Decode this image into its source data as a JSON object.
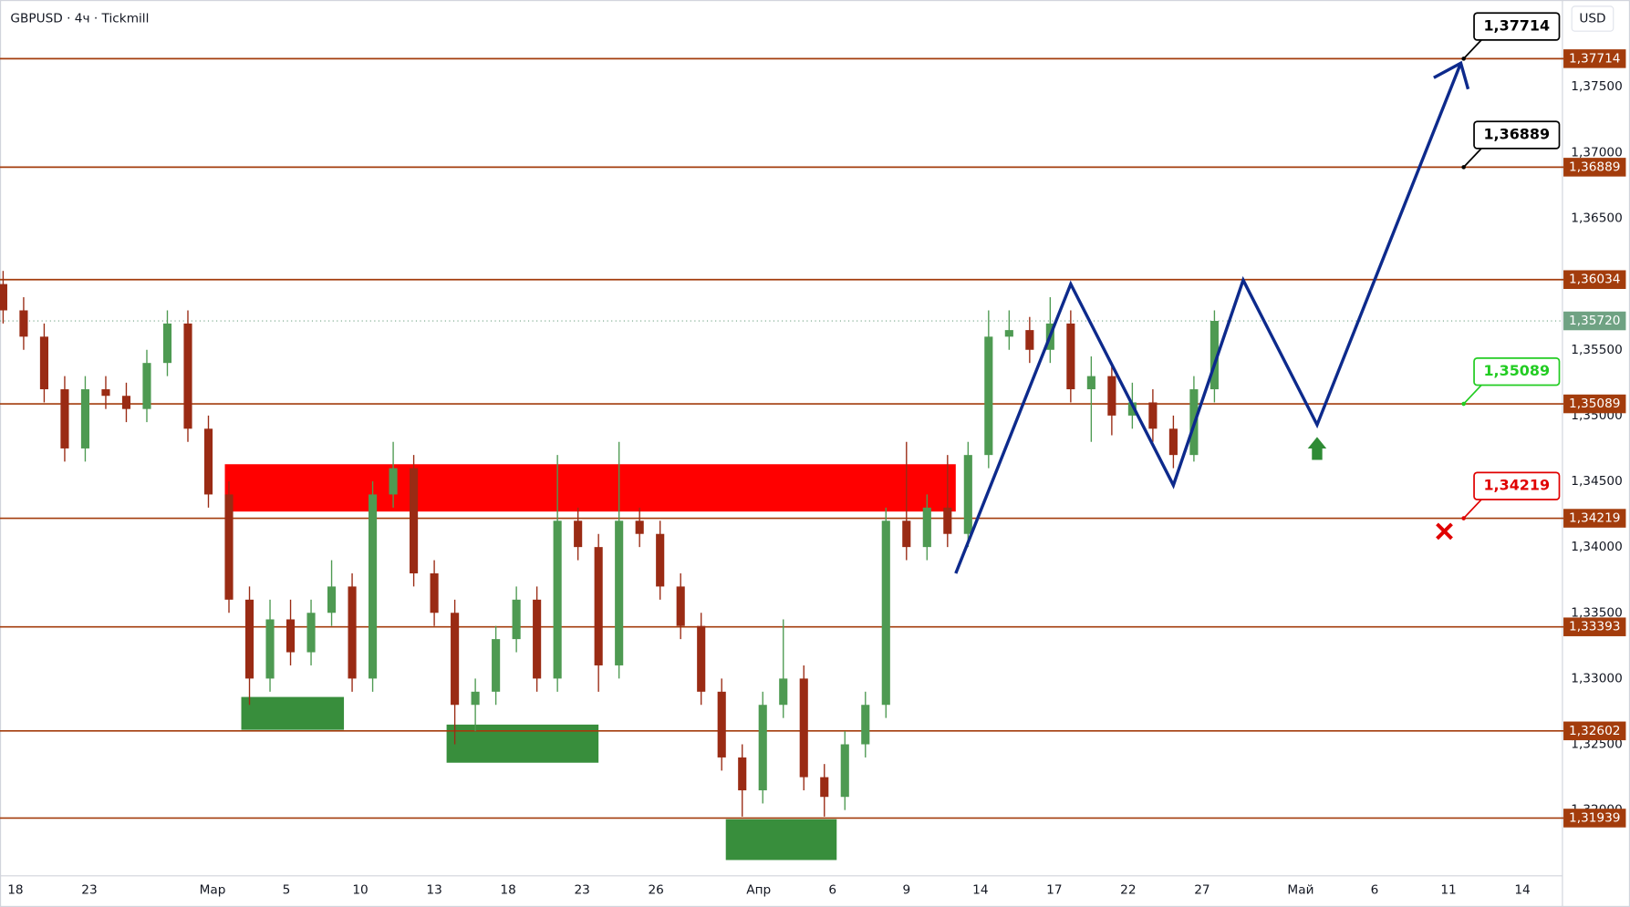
{
  "chart_data": {
    "type": "candlestick",
    "title": "GBPUSD · 4ч · Tickmill",
    "currency": "USD",
    "up_color": "#4e9a52",
    "down_color": "#9a2b14",
    "x": [
      0,
      5,
      10,
      15,
      20,
      25,
      30,
      35,
      40,
      45,
      50,
      55,
      60,
      65,
      70,
      75,
      80,
      85,
      90,
      95,
      100,
      105,
      110,
      115,
      120,
      125,
      130,
      135,
      140,
      145,
      150,
      155,
      160,
      165,
      170,
      175,
      180,
      185,
      190,
      195,
      200,
      205,
      210,
      215,
      220,
      225,
      230,
      235,
      240,
      245,
      250,
      255,
      260,
      265,
      270,
      275,
      280,
      285,
      290,
      295
    ],
    "open": [
      1.36,
      1.358,
      1.356,
      1.352,
      1.3475,
      1.352,
      1.3515,
      1.3505,
      1.354,
      1.357,
      1.349,
      1.344,
      1.336,
      1.33,
      1.3345,
      1.332,
      1.335,
      1.337,
      1.33,
      1.344,
      1.346,
      1.338,
      1.335,
      1.328,
      1.329,
      1.333,
      1.336,
      1.33,
      1.342,
      1.34,
      1.331,
      1.342,
      1.341,
      1.337,
      1.334,
      1.329,
      1.324,
      1.3215,
      1.328,
      1.33,
      1.3225,
      1.321,
      1.325,
      1.328,
      1.342,
      1.34,
      1.343,
      1.341,
      1.347,
      1.356,
      1.3565,
      1.355,
      1.357,
      1.352,
      1.353,
      1.35,
      1.351,
      1.349,
      1.347,
      1.352
    ],
    "high": [
      1.361,
      1.359,
      1.357,
      1.353,
      1.353,
      1.353,
      1.3525,
      1.355,
      1.358,
      1.358,
      1.35,
      1.345,
      1.337,
      1.336,
      1.336,
      1.336,
      1.339,
      1.338,
      1.345,
      1.348,
      1.347,
      1.339,
      1.336,
      1.33,
      1.334,
      1.337,
      1.337,
      1.347,
      1.343,
      1.341,
      1.348,
      1.343,
      1.342,
      1.338,
      1.335,
      1.33,
      1.325,
      1.329,
      1.3345,
      1.331,
      1.3235,
      1.326,
      1.329,
      1.343,
      1.348,
      1.344,
      1.347,
      1.348,
      1.358,
      1.358,
      1.3575,
      1.359,
      1.358,
      1.3545,
      1.354,
      1.3525,
      1.352,
      1.35,
      1.353,
      1.358
    ],
    "low": [
      1.357,
      1.355,
      1.351,
      1.3465,
      1.3465,
      1.3505,
      1.3495,
      1.3495,
      1.353,
      1.348,
      1.343,
      1.335,
      1.328,
      1.329,
      1.331,
      1.331,
      1.334,
      1.329,
      1.329,
      1.343,
      1.337,
      1.334,
      1.325,
      1.326,
      1.328,
      1.332,
      1.329,
      1.329,
      1.339,
      1.329,
      1.33,
      1.34,
      1.336,
      1.333,
      1.328,
      1.323,
      1.3195,
      1.3205,
      1.327,
      1.3215,
      1.3195,
      1.32,
      1.324,
      1.327,
      1.339,
      1.339,
      1.34,
      1.34,
      1.346,
      1.355,
      1.354,
      1.354,
      1.351,
      1.348,
      1.3485,
      1.349,
      1.348,
      1.346,
      1.3465,
      1.351
    ],
    "close": [
      1.358,
      1.356,
      1.352,
      1.3475,
      1.352,
      1.3515,
      1.3505,
      1.354,
      1.357,
      1.349,
      1.344,
      1.336,
      1.33,
      1.3345,
      1.332,
      1.335,
      1.337,
      1.33,
      1.344,
      1.346,
      1.338,
      1.335,
      1.328,
      1.329,
      1.333,
      1.336,
      1.33,
      1.342,
      1.34,
      1.331,
      1.342,
      1.341,
      1.337,
      1.334,
      1.329,
      1.324,
      1.3215,
      1.328,
      1.33,
      1.3225,
      1.321,
      1.325,
      1.328,
      1.342,
      1.34,
      1.343,
      1.341,
      1.347,
      1.356,
      1.3565,
      1.355,
      1.357,
      1.352,
      1.353,
      1.35,
      1.351,
      1.349,
      1.347,
      1.352,
      1.3572
    ],
    "xlim": [
      0,
      380
    ],
    "ylim": [
      1.315,
      1.3816
    ],
    "xticks": [
      {
        "value": 3,
        "label": "18"
      },
      {
        "value": 21,
        "label": "23"
      },
      {
        "value": 51,
        "label": "Мар"
      },
      {
        "value": 69,
        "label": "5"
      },
      {
        "value": 87,
        "label": "10"
      },
      {
        "value": 105,
        "label": "13"
      },
      {
        "value": 123,
        "label": "18"
      },
      {
        "value": 141,
        "label": "23"
      },
      {
        "value": 159,
        "label": "26"
      },
      {
        "value": 184,
        "label": "Апр"
      },
      {
        "value": 202,
        "label": "6"
      },
      {
        "value": 220,
        "label": "9"
      },
      {
        "value": 238,
        "label": "14"
      },
      {
        "value": 256,
        "label": "17"
      },
      {
        "value": 274,
        "label": "22"
      },
      {
        "value": 292,
        "label": "27"
      },
      {
        "value": 316,
        "label": "Май"
      },
      {
        "value": 334,
        "label": "6"
      },
      {
        "value": 352,
        "label": "11"
      },
      {
        "value": 370,
        "label": "14"
      }
    ],
    "yticks": [
      {
        "value": 1.375,
        "label": "1,37500"
      },
      {
        "value": 1.37,
        "label": "1,37000"
      },
      {
        "value": 1.365,
        "label": "1,36500"
      },
      {
        "value": 1.36,
        "label": "1,36000"
      },
      {
        "value": 1.355,
        "label": "1,35500"
      },
      {
        "value": 1.35,
        "label": "1,35000"
      },
      {
        "value": 1.345,
        "label": "1,34500"
      },
      {
        "value": 1.34,
        "label": "1,34000"
      },
      {
        "value": 1.335,
        "label": "1,33500"
      },
      {
        "value": 1.33,
        "label": "1,33000"
      },
      {
        "value": 1.325,
        "label": "1,32500"
      },
      {
        "value": 1.32,
        "label": "1,32000"
      }
    ],
    "levels": [
      {
        "value": 1.37714,
        "label": "1,37714"
      },
      {
        "value": 1.36889,
        "label": "1,36889"
      },
      {
        "value": 1.36034,
        "label": "1,36034"
      },
      {
        "value": 1.35089,
        "label": "1,35089"
      },
      {
        "value": 1.34219,
        "label": "1,34219"
      },
      {
        "value": 1.33393,
        "label": "1,33393"
      },
      {
        "value": 1.32602,
        "label": "1,32602"
      },
      {
        "value": 1.31939,
        "label": "1,31939"
      }
    ],
    "level_color": "#a33c0c",
    "last_price": {
      "value": 1.3572,
      "label": "1,35720",
      "color": "#6fa283"
    },
    "zones": [
      {
        "color": "#ff0000",
        "x": [
          54,
          232
        ],
        "y": [
          1.3427,
          1.3463
        ]
      },
      {
        "color": "#388e3c",
        "x": [
          58,
          83
        ],
        "y": [
          1.3261,
          1.3286
        ]
      },
      {
        "color": "#388e3c",
        "x": [
          108,
          145
        ],
        "y": [
          1.3236,
          1.3265
        ]
      },
      {
        "color": "#388e3c",
        "x": [
          176,
          203
        ],
        "y": [
          1.3162,
          1.3193
        ]
      }
    ],
    "projection": {
      "color": "#0d2a8c",
      "x": [
        232,
        260,
        285,
        302,
        320,
        355
      ],
      "y": [
        1.338,
        1.36,
        1.3447,
        1.3603,
        1.3493,
        1.3768
      ]
    },
    "callouts": [
      {
        "value": 1.37714,
        "label": "1,37714",
        "color": "#000000"
      },
      {
        "value": 1.36889,
        "label": "1,36889",
        "color": "#000000"
      },
      {
        "value": 1.35089,
        "label": "1,35089",
        "color": "#22cc22"
      },
      {
        "value": 1.34219,
        "label": "1,34219",
        "color": "#e00000"
      }
    ],
    "buy_signal": {
      "x": 320,
      "y": 1.3475,
      "color": "#2e8b35"
    },
    "stop_signal": {
      "x": 351,
      "y": 1.3412,
      "color": "#e00000"
    }
  }
}
